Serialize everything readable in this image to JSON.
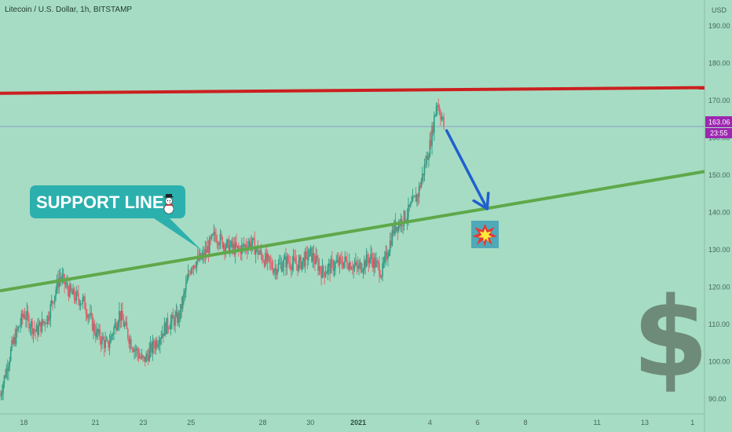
{
  "chart_data": {
    "type": "candlestick",
    "title": "Litecoin / U.S. Dollar, 1h, BITSTAMP",
    "currency": "USD",
    "y_ticks": [
      "190.00",
      "180.00",
      "170.00",
      "160.00",
      "150.00",
      "140.00",
      "130.00",
      "120.00",
      "110.00",
      "100.00",
      "90.00"
    ],
    "ylim": [
      86,
      197
    ],
    "x_ticks": [
      "18",
      "21",
      "23",
      "25",
      "28",
      "30",
      "2021",
      "4",
      "6",
      "8",
      "11",
      "13",
      "1"
    ],
    "x_tick_days": [
      0,
      3,
      5,
      7,
      10,
      12,
      14,
      17,
      19,
      21,
      24,
      26,
      28
    ],
    "x_range_days": [
      -1,
      28.5
    ],
    "price_series": {
      "name": "LTCUSD",
      "x_days": [
        -1.0,
        -0.5,
        0.0,
        0.5,
        1.0,
        1.5,
        2.0,
        2.5,
        3.0,
        3.5,
        4.0,
        4.5,
        5.0,
        5.5,
        6.0,
        6.5,
        7.0,
        7.5,
        8.0,
        8.5,
        9.0,
        9.5,
        10.0,
        10.5,
        11.0,
        11.5,
        12.0,
        12.5,
        13.0,
        13.5,
        14.0,
        14.5,
        15.0,
        15.5,
        16.0,
        16.5,
        17.0,
        17.3,
        17.6
      ],
      "close": [
        91,
        104,
        113,
        108,
        112,
        123,
        118,
        116,
        108,
        104,
        113,
        105,
        100,
        105,
        110,
        112,
        126,
        128,
        134,
        131,
        130,
        132,
        128,
        125,
        127,
        126,
        129,
        124,
        126,
        127,
        125,
        128,
        124,
        136,
        139,
        145,
        158,
        170,
        163
      ]
    },
    "resistance_line": {
      "color": "#cc1f1f",
      "x_days": [
        -1,
        28.5
      ],
      "y": [
        172,
        173.5
      ]
    },
    "support_line": {
      "color": "#5fa84a",
      "x_days": [
        -1,
        28.5
      ],
      "y": [
        119,
        151
      ]
    },
    "projection_arrow": {
      "color": "#1f5fcf",
      "from": {
        "x_day": 17.7,
        "y": 162
      },
      "to": {
        "x_day": 19.4,
        "y": 141
      }
    },
    "last_price_line": {
      "y": 163.06
    },
    "grid": false
  },
  "price_badge": {
    "price": "163.06",
    "countdown": "23:55",
    "color": "#9c27b0"
  },
  "callout": {
    "label": "SUPPORT LINE",
    "emoji": "☃",
    "color": "#2bb0ae"
  },
  "marker": {
    "emoji": "✸"
  },
  "watermark": {
    "glyph": "$"
  }
}
